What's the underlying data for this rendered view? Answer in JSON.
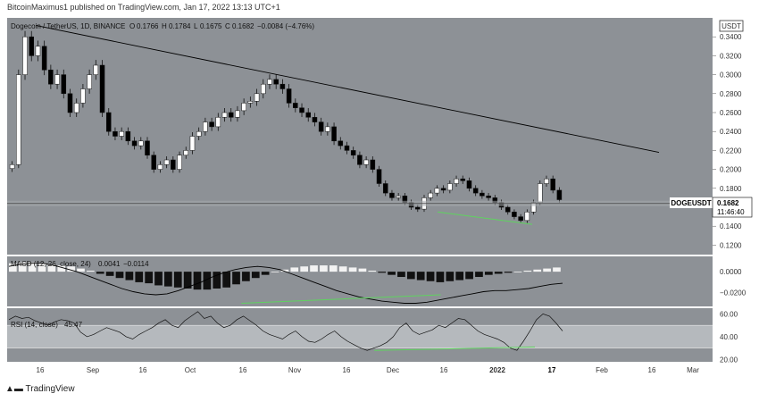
{
  "header": {
    "published_line": "BitcoinMaximus1 published on TradingView.com, Jan 17, 2022 13:13 UTC+1"
  },
  "footer": {
    "brand": "TradingView"
  },
  "colors": {
    "panel_bg": "#8d9196",
    "axis_bg": "#ffffff",
    "candle_up": "#ffffff",
    "candle_down": "#000000",
    "trendline": "#000000",
    "divergence": "#5fd35f",
    "rsi_band": "#b5b9bd"
  },
  "chart_data": {
    "type": "candlestick",
    "symbol_line": "Dogecoin / TetherUS, 1D, BINANCE",
    "ohlc_line": {
      "o_label": "O",
      "o": "0.1766",
      "h_label": "H",
      "h": "0.1784",
      "l_label": "L",
      "l": "0.1675",
      "c_label": "C",
      "c": "0.1682",
      "change": "−0.0084 (−4.76%)"
    },
    "currency_label": "USDT",
    "price_axis": {
      "ticks": [
        "0.3400",
        "0.3200",
        "0.3000",
        "0.2800",
        "0.2600",
        "0.2400",
        "0.2200",
        "0.2000",
        "0.1800",
        "0.1400",
        "0.1200"
      ],
      "range": [
        0.11,
        0.36
      ]
    },
    "x_axis_labels": [
      "16",
      "Sep",
      "16",
      "Oct",
      "16",
      "Nov",
      "16",
      "Dec",
      "16",
      "2022",
      "17",
      "Feb",
      "16",
      "Mar"
    ],
    "last_price": {
      "symbol": "DOGEUSDT",
      "price": "0.1682",
      "countdown": "11:46:40"
    },
    "horizontal_level": 0.164,
    "trendline": {
      "from": [
        "2021-08-16",
        0.352
      ],
      "to": [
        "2022-02-17",
        0.218
      ]
    },
    "price_divergence": {
      "from": [
        "2021-12-14",
        0.155
      ],
      "to": [
        "2022-01-10",
        0.142
      ]
    },
    "price_series_close": [
      0.205,
      0.3,
      0.34,
      0.32,
      0.33,
      0.305,
      0.29,
      0.3,
      0.28,
      0.26,
      0.27,
      0.285,
      0.3,
      0.31,
      0.26,
      0.24,
      0.235,
      0.24,
      0.23,
      0.225,
      0.23,
      0.215,
      0.2,
      0.205,
      0.21,
      0.2,
      0.215,
      0.22,
      0.235,
      0.24,
      0.25,
      0.245,
      0.255,
      0.26,
      0.255,
      0.262,
      0.27,
      0.272,
      0.28,
      0.29,
      0.295,
      0.29,
      0.285,
      0.27,
      0.265,
      0.26,
      0.255,
      0.25,
      0.24,
      0.245,
      0.23,
      0.225,
      0.22,
      0.215,
      0.205,
      0.21,
      0.2,
      0.185,
      0.175,
      0.17,
      0.172,
      0.165,
      0.16,
      0.158,
      0.17,
      0.175,
      0.18,
      0.178,
      0.185,
      0.19,
      0.188,
      0.18,
      0.175,
      0.172,
      0.17,
      0.165,
      0.16,
      0.155,
      0.15,
      0.146,
      0.155,
      0.165,
      0.185,
      0.19,
      0.178,
      0.168
    ],
    "macd": {
      "label": "MACD (12, 26, close, 24)",
      "value_label": "0.0041",
      "value_label_2": "−0.0114",
      "ticks": [
        "0.0000",
        "−0.0200"
      ],
      "range": [
        -0.033,
        0.012
      ],
      "histogram": [
        0.008,
        0.009,
        0.009,
        0.008,
        0.007,
        0.006,
        0.005,
        0.003,
        0.001,
        -0.002,
        -0.004,
        -0.006,
        -0.008,
        -0.01,
        -0.011,
        -0.013,
        -0.014,
        -0.015,
        -0.016,
        -0.017,
        -0.017,
        -0.016,
        -0.015,
        -0.012,
        -0.009,
        -0.006,
        -0.003,
        0.0,
        0.002,
        0.004,
        0.005,
        0.006,
        0.006,
        0.006,
        0.005,
        0.004,
        0.003,
        0.001,
        -0.001,
        -0.003,
        -0.005,
        -0.007,
        -0.008,
        -0.009,
        -0.01,
        -0.009,
        -0.008,
        -0.007,
        -0.005,
        -0.003,
        -0.002,
        -0.001,
        0.0,
        0.001,
        0.002,
        0.003,
        0.004
      ],
      "signal": [
        0.005,
        0.007,
        0.008,
        0.008,
        0.006,
        0.003,
        0.0,
        -0.004,
        -0.008,
        -0.012,
        -0.016,
        -0.019,
        -0.021,
        -0.022,
        -0.021,
        -0.018,
        -0.014,
        -0.01,
        -0.005,
        -0.001,
        0.002,
        0.004,
        0.005,
        0.004,
        0.002,
        -0.002,
        -0.006,
        -0.01,
        -0.014,
        -0.018,
        -0.021,
        -0.024,
        -0.026,
        -0.028,
        -0.029,
        -0.03,
        -0.03,
        -0.029,
        -0.027,
        -0.025,
        -0.023,
        -0.021,
        -0.019,
        -0.018,
        -0.018,
        -0.017,
        -0.016,
        -0.014,
        -0.012,
        -0.011
      ],
      "divergence": {
        "from": [
          0.42,
          -0.03
        ],
        "to": [
          0.78,
          -0.022
        ]
      }
    },
    "rsi": {
      "label": "RSI (14, close)",
      "value_label": "45.47",
      "ticks": [
        "60.00",
        "40.00",
        "20.00"
      ],
      "range": [
        18,
        65
      ],
      "band": [
        30,
        50
      ],
      "values": [
        55,
        58,
        56,
        57,
        54,
        52,
        50,
        53,
        55,
        54,
        52,
        44,
        40,
        42,
        45,
        48,
        46,
        44,
        40,
        38,
        42,
        45,
        48,
        52,
        55,
        50,
        48,
        54,
        58,
        62,
        56,
        58,
        52,
        48,
        50,
        55,
        58,
        54,
        50,
        45,
        42,
        40,
        38,
        42,
        45,
        40,
        36,
        35,
        38,
        42,
        45,
        40,
        36,
        33,
        30,
        28,
        30,
        32,
        35,
        40,
        48,
        52,
        45,
        42,
        44,
        46,
        50,
        48,
        52,
        56,
        55,
        50,
        45,
        42,
        40,
        38,
        35,
        30,
        28,
        36,
        45,
        55,
        60,
        58,
        52,
        45
      ],
      "divergence": {
        "from": [
          0.66,
          28
        ],
        "to": [
          0.95,
          31
        ]
      }
    }
  }
}
